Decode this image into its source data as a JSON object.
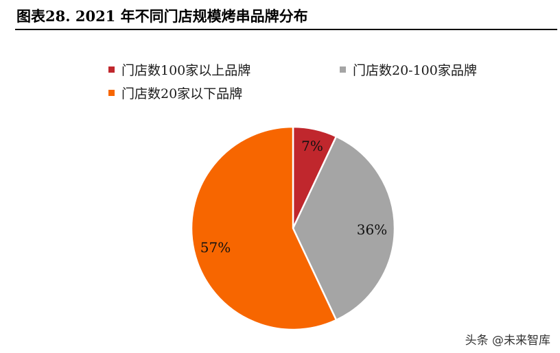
{
  "header": {
    "title": "图表28. 2021 年不同门店规模烤串品牌分布"
  },
  "chart_data": {
    "type": "pie",
    "title": "",
    "series": [
      {
        "name": "门店数100家以上品牌",
        "value": 7,
        "label": "7%",
        "color": "#C0272D"
      },
      {
        "name": "门店数20-100家品牌",
        "value": 36,
        "label": "36%",
        "color": "#A5A5A5"
      },
      {
        "name": "门店数20家以下品牌",
        "value": 57,
        "label": "57%",
        "color": "#F76600"
      }
    ],
    "legend_position": "top-left"
  },
  "watermark": {
    "text": "头条 @未来智库"
  }
}
